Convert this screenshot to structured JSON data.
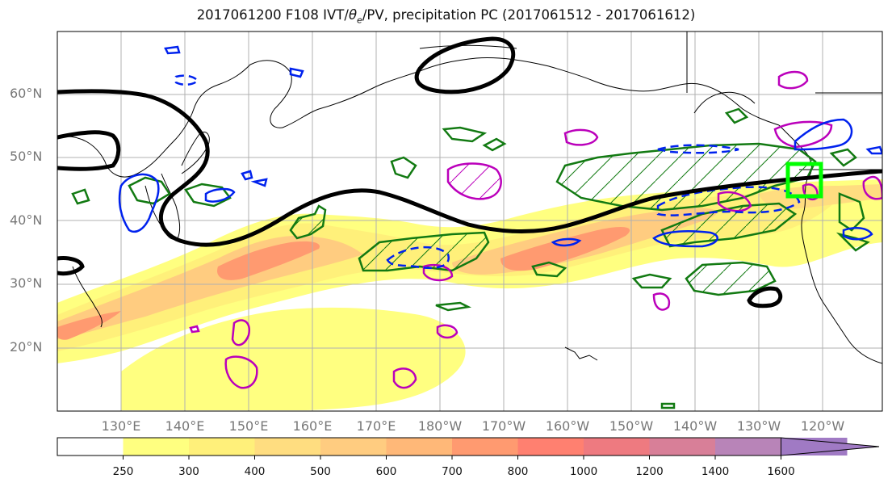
{
  "title": "2017061200 F108 IVT/θe/PV, precipitation PC (2017061512 - 2017061612)",
  "title_parts": {
    "pre": "2017061200 F108 IVT/",
    "theta": "θ",
    "sub": "e",
    "post": "/PV, precipitation PC (2017061512 - 2017061612)"
  },
  "latitude_labels": [
    "60°N",
    "50°N",
    "40°N",
    "30°N",
    "20°N"
  ],
  "longitude_labels": [
    "130°E",
    "140°E",
    "150°E",
    "160°E",
    "170°E",
    "180°W",
    "170°W",
    "160°W",
    "150°W",
    "140°W",
    "130°W",
    "120°W"
  ],
  "colorbar": {
    "ticks": [
      "250",
      "300",
      "400",
      "500",
      "600",
      "700",
      "800",
      "1000",
      "1200",
      "1400",
      "1600"
    ],
    "colors": [
      "#ffffff",
      "#ffff80",
      "#fff07a",
      "#ffdd80",
      "#ffcc80",
      "#ffb878",
      "#ff9a70",
      "#ff8070",
      "#ee7a80",
      "#d87f98",
      "#b884b8",
      "#a07ac4"
    ]
  },
  "colors": {
    "theta_e": "#000000",
    "precip": "#127a12",
    "pv_positive": "#bb00bb",
    "pv_negative": "#0022ee",
    "highlight_box": "#00ff00",
    "ivt_core": "#ff7f7f"
  },
  "legend": []
}
